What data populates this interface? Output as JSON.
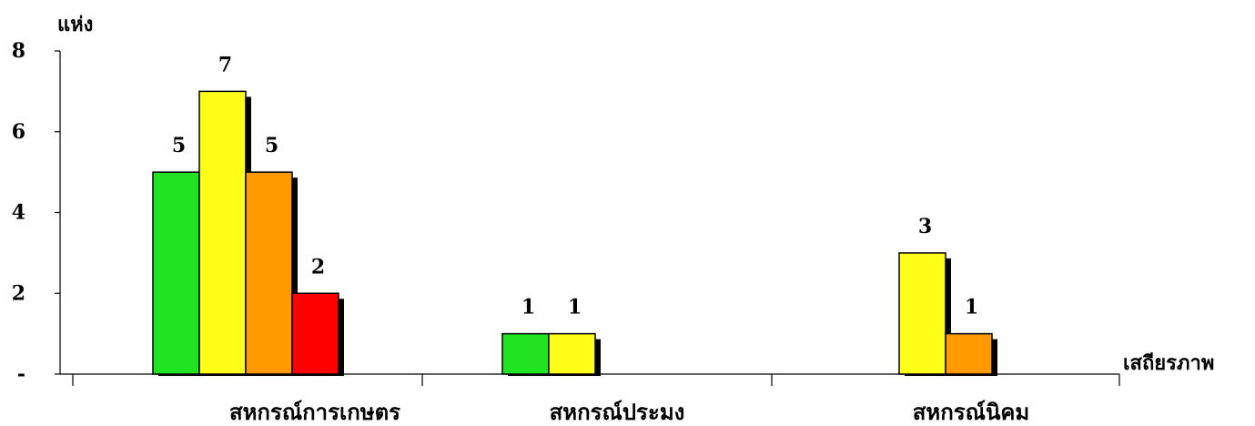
{
  "chart_data": {
    "type": "bar",
    "ylabel": "แห่ง",
    "xlabel": "เสถียรภาพ",
    "ylim": [
      0,
      8
    ],
    "y_ticks": [
      "-",
      "2",
      "4",
      "6",
      "8"
    ],
    "grid": false,
    "legend": "none",
    "categories": [
      "สหกรณ์การเกษตร",
      "สหกรณ์ประมง",
      "สหกรณ์นิคม"
    ],
    "series": [
      {
        "values": [
          5,
          1,
          0
        ],
        "color": "#22E322"
      },
      {
        "values": [
          7,
          1,
          3
        ],
        "color": "#FFFF1A"
      },
      {
        "values": [
          5,
          0,
          1
        ],
        "color": "#FF9900"
      },
      {
        "values": [
          2,
          0,
          0
        ],
        "color": "#FF0000"
      }
    ],
    "shadow_color": "#000000"
  }
}
